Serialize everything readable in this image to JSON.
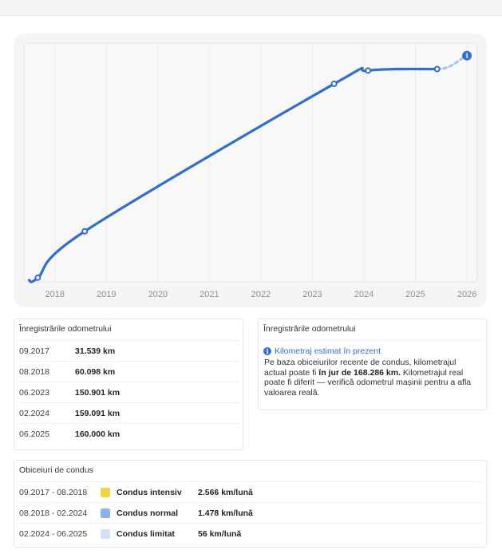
{
  "chart_data": {
    "type": "line",
    "x_ticks": [
      "2018",
      "2019",
      "2020",
      "2021",
      "2022",
      "2023",
      "2024",
      "2025",
      "2026"
    ],
    "points": [
      {
        "date": "09.2017",
        "x": 2017.67,
        "km": 31539
      },
      {
        "date": "08.2018",
        "x": 2018.58,
        "km": 60098
      },
      {
        "date": "06.2023",
        "x": 2023.42,
        "km": 150901
      },
      {
        "date": "02.2024",
        "x": 2024.08,
        "km": 159091
      },
      {
        "date": "06.2025",
        "x": 2025.42,
        "km": 160000
      }
    ],
    "estimate": {
      "x": 2026.0,
      "km": 168286,
      "style": "dashed"
    },
    "line_start": {
      "x": 2017.5,
      "km": 30000
    },
    "xlim": [
      2017.4,
      2026.2
    ],
    "ylim": [
      29000,
      176000
    ],
    "grid": "vertical",
    "line_color": "#2f6fd1",
    "estimate_color": "#a7c3ee"
  },
  "odometer": {
    "title": "Înregistrările odometrului",
    "rows": [
      {
        "date": "09.2017",
        "km": "31.539 km"
      },
      {
        "date": "08.2018",
        "km": "60.098 km"
      },
      {
        "date": "06.2023",
        "km": "150.901 km"
      },
      {
        "date": "02.2024",
        "km": "159.091 km"
      },
      {
        "date": "06.2025",
        "km": "160.000 km"
      }
    ]
  },
  "estimate": {
    "title": "Înregistrările odometrului",
    "heading": "Kilometraj estimat în prezent",
    "text_before": "Pe baza obiceiurilor recente de condus, kilometrajul actual poate fi ",
    "text_bold": "în jur de 168.286 km.",
    "text_after": " Kilometrajul real poate fi diferit — verifică odometrul mașinii pentru a afla valoarea reală."
  },
  "habits": {
    "title": "Obiceiuri de condus",
    "rows": [
      {
        "period": "09.2017 - 08.2018",
        "type": "Condus intensiv",
        "rate": "2.566 km/lună",
        "color": "#f5d442"
      },
      {
        "period": "08.2018 - 02.2024",
        "type": "Condus normal",
        "rate": "1.478 km/lună",
        "color": "#8ab4f0"
      },
      {
        "period": "02.2024 - 06.2025",
        "type": "Condus limitat",
        "rate": "56 km/lună",
        "color": "#cfe1f8"
      }
    ]
  }
}
